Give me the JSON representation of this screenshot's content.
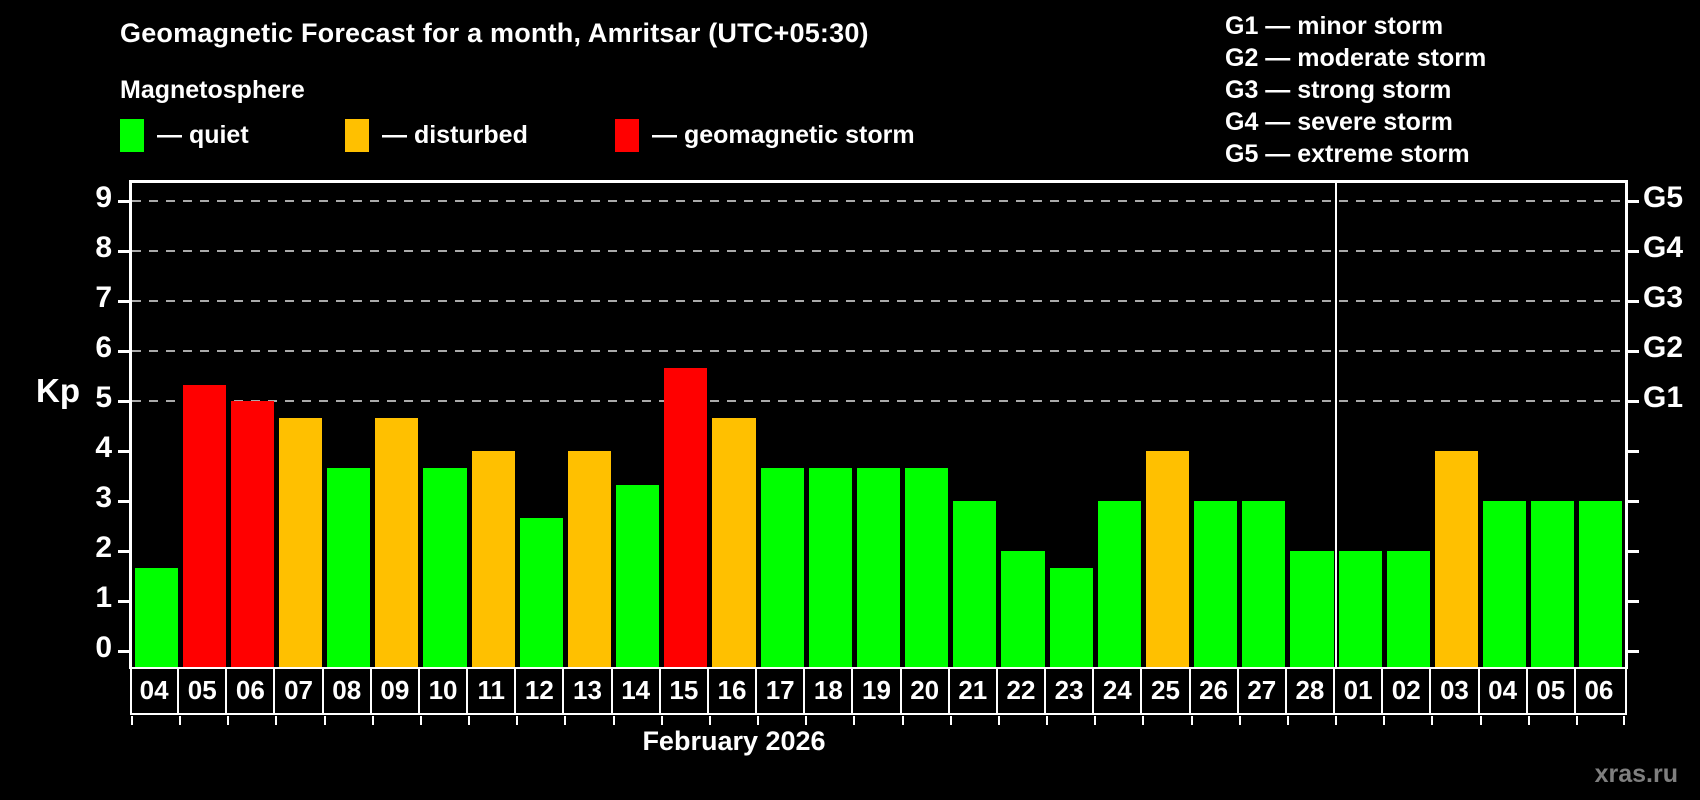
{
  "header": {
    "title": "Geomagnetic Forecast for a month, Amritsar (UTC+05:30)",
    "subtitle": "Magnetosphere"
  },
  "legend": {
    "items": [
      {
        "label": "— quiet",
        "color": "#00ff00"
      },
      {
        "label": "— disturbed",
        "color": "#ffc000"
      },
      {
        "label": "— geomagnetic storm",
        "color": "#ff0000"
      }
    ]
  },
  "g_scale_legend": {
    "lines": [
      "G1 — minor storm",
      "G2 — moderate storm",
      "G3 — strong storm",
      "G4 — severe storm",
      "G5 — extreme storm"
    ]
  },
  "watermark": "xras.ru",
  "chart_data": {
    "type": "bar",
    "title": "Geomagnetic Forecast for a month, Amritsar (UTC+05:30)",
    "xlabel": "February 2026",
    "ylabel": "Kp",
    "ylim": [
      0,
      9.4
    ],
    "yticks": [
      0,
      1,
      2,
      3,
      4,
      5,
      6,
      7,
      8,
      9
    ],
    "gridlines_at": [
      5,
      6,
      7,
      8,
      9
    ],
    "grid_dashed": true,
    "right_axis_labels": [
      {
        "label": "G1",
        "kp": 5
      },
      {
        "label": "G2",
        "kp": 6
      },
      {
        "label": "G3",
        "kp": 7
      },
      {
        "label": "G4",
        "kp": 8
      },
      {
        "label": "G5",
        "kp": 9
      }
    ],
    "legend_position": "top-left",
    "month_divider_after_index": 24,
    "categories": [
      "04",
      "05",
      "06",
      "07",
      "08",
      "09",
      "10",
      "11",
      "12",
      "13",
      "14",
      "15",
      "16",
      "17",
      "18",
      "19",
      "20",
      "21",
      "22",
      "23",
      "24",
      "25",
      "26",
      "27",
      "28",
      "01",
      "02",
      "03",
      "04",
      "05",
      "06"
    ],
    "values": [
      1.67,
      5.33,
      5.0,
      4.67,
      3.67,
      4.67,
      3.67,
      4.0,
      2.67,
      4.0,
      3.33,
      5.67,
      4.67,
      3.67,
      3.67,
      3.67,
      3.67,
      3.0,
      2.0,
      1.67,
      3.0,
      4.0,
      3.0,
      3.0,
      2.0,
      2.0,
      2.0,
      4.0,
      3.0,
      3.0,
      3.0
    ],
    "statuses": [
      "quiet",
      "storm",
      "storm",
      "disturbed",
      "quiet",
      "disturbed",
      "quiet",
      "disturbed",
      "quiet",
      "disturbed",
      "quiet",
      "storm",
      "disturbed",
      "quiet",
      "quiet",
      "quiet",
      "quiet",
      "quiet",
      "quiet",
      "quiet",
      "quiet",
      "disturbed",
      "quiet",
      "quiet",
      "quiet",
      "quiet",
      "quiet",
      "disturbed",
      "quiet",
      "quiet",
      "quiet"
    ],
    "colors": {
      "quiet": "#00ff00",
      "disturbed": "#ffc000",
      "storm": "#ff0000"
    }
  }
}
